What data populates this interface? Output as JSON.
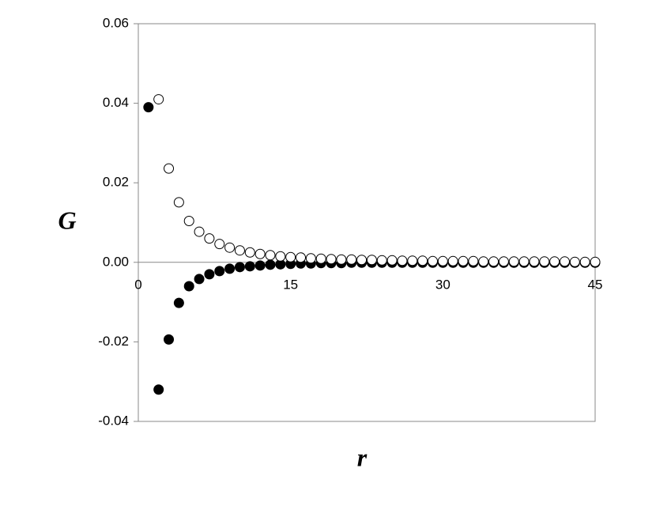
{
  "chart_data": {
    "type": "scatter",
    "x_label": "r",
    "y_label": "G",
    "series": [
      {
        "name": "filled",
        "color": "#000000",
        "fill": true,
        "x": [
          1,
          2,
          3,
          4,
          5,
          6,
          7,
          8,
          9,
          10,
          11,
          12,
          13,
          14,
          15,
          16,
          17,
          18,
          19,
          20,
          21,
          22,
          23,
          24,
          25,
          26,
          27,
          28,
          29,
          30,
          31,
          32,
          33,
          34,
          35,
          36,
          37,
          38,
          39,
          40,
          41,
          42,
          43,
          44,
          45
        ],
        "values": [
          0.039,
          -0.032,
          -0.0194,
          -0.0102,
          -0.006,
          -0.0042,
          -0.003,
          -0.0022,
          -0.0016,
          -0.0012,
          -0.001,
          -0.0008,
          -0.0006,
          -0.0005,
          -0.0004,
          -0.0003,
          -0.0003,
          -0.0002,
          -0.0002,
          -0.0002,
          -0.0001,
          -0.0001,
          -0.0001,
          -0.0001,
          -0.0001,
          -0.0001,
          -0.0001,
          -0.0001,
          -0.0001,
          -0.0001,
          -0.0001,
          -0.0001,
          -0.0001,
          -0.0001,
          -0.0001,
          -0.0001,
          -0.0001,
          -0.0001,
          -0.0001,
          -0.0001,
          -0.0001,
          -0.0001,
          -0.0001,
          -0.0001,
          -0.0001
        ]
      },
      {
        "name": "open",
        "color": "#000000",
        "fill": false,
        "x": [
          2,
          3,
          4,
          5,
          6,
          7,
          8,
          9,
          10,
          11,
          12,
          13,
          14,
          15,
          16,
          17,
          18,
          19,
          20,
          21,
          22,
          23,
          24,
          25,
          26,
          27,
          28,
          29,
          30,
          31,
          32,
          33,
          34,
          35,
          36,
          37,
          38,
          39,
          40,
          41,
          42,
          43,
          44,
          45
        ],
        "values": [
          0.041,
          0.0236,
          0.0151,
          0.0104,
          0.0077,
          0.006,
          0.0046,
          0.0037,
          0.003,
          0.0025,
          0.0021,
          0.0018,
          0.0015,
          0.0013,
          0.0012,
          0.001,
          0.0009,
          0.0008,
          0.0007,
          0.0007,
          0.0006,
          0.0006,
          0.0005,
          0.0005,
          0.0004,
          0.0004,
          0.0004,
          0.0003,
          0.0003,
          0.0003,
          0.0003,
          0.0003,
          0.0002,
          0.0002,
          0.0002,
          0.0002,
          0.0002,
          0.0002,
          0.0002,
          0.0002,
          0.0002,
          0.0001,
          0.0001,
          0.0001
        ]
      }
    ],
    "xlim": [
      0,
      45
    ],
    "xticks": [
      0,
      15,
      30,
      45
    ],
    "ylim": [
      -0.04,
      0.06
    ],
    "yticks": [
      {
        "value": -0.04,
        "label": "-0.04"
      },
      {
        "value": -0.02,
        "label": "-0.02"
      },
      {
        "value": 0,
        "label": "0.00"
      },
      {
        "value": 0.02,
        "label": "0.02"
      },
      {
        "value": 0.04,
        "label": "0.04"
      },
      {
        "value": 0.06,
        "label": "0.06"
      }
    ]
  }
}
